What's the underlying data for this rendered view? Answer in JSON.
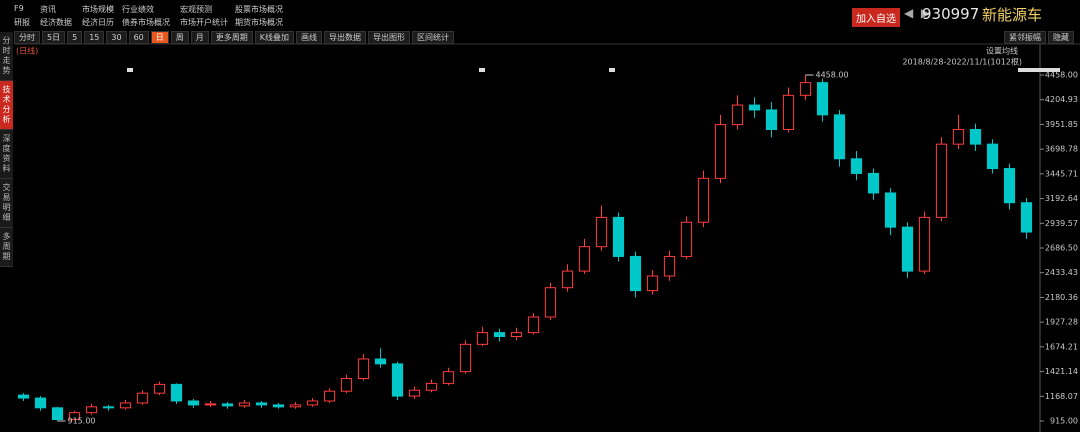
{
  "menu": {
    "rows": [
      [
        "F9",
        "资讯",
        "市场规模",
        "行业绩效",
        "宏观预测",
        "股票市场概况"
      ],
      [
        "研报",
        "经济数据",
        "经济日历",
        "债券市场概况",
        "市场开户统计",
        "期货市场概况"
      ]
    ]
  },
  "header": {
    "add_button": "加入自选",
    "code": "930997",
    "name": "新能源车"
  },
  "toolbar": [
    "分时",
    "5日",
    "5",
    "15",
    "30",
    "60",
    "日",
    "周",
    "月",
    "更多周期",
    "K线叠加",
    "画线",
    "导出数据",
    "导出图形",
    "区间统计"
  ],
  "toolbar_right": [
    "紧邻振幅",
    "隐藏"
  ],
  "side_tabs": [
    "分时走势",
    "技术分析",
    "深度资料",
    "交易明细",
    "多周期"
  ],
  "chart_data": {
    "type": "candlestick",
    "period_label": "(日线)",
    "ma_setting": "设置均线",
    "range_label": "2018/8/28-2022/11/1(1012根)",
    "up_color": "#ff3b3b",
    "down_color": "#00c8c8",
    "open": [
      1180,
      1150,
      1050,
      930,
      1000,
      1060,
      1050,
      1100,
      1200,
      1290,
      1120,
      1080,
      1090,
      1070,
      1100,
      1080,
      1060,
      1080,
      1120,
      1220,
      1350,
      1550,
      1500,
      1170,
      1230,
      1300,
      1420,
      1700,
      1820,
      1780,
      1820,
      1980,
      2280,
      2450,
      2700,
      3000,
      2600,
      2250,
      2400,
      2600,
      2950,
      3400,
      3950,
      4150,
      4100,
      3900,
      4250,
      4380,
      4050,
      3600,
      3450,
      3250,
      2900,
      2450,
      3000,
      3750,
      3900,
      3750,
      3500,
      3150
    ],
    "high": [
      1200,
      1170,
      1060,
      1020,
      1090,
      1080,
      1130,
      1230,
      1320,
      1300,
      1140,
      1120,
      1110,
      1130,
      1120,
      1100,
      1110,
      1150,
      1250,
      1390,
      1600,
      1660,
      1520,
      1270,
      1340,
      1460,
      1740,
      1880,
      1860,
      1870,
      2020,
      2330,
      2520,
      2780,
      3120,
      3050,
      2650,
      2460,
      2660,
      3010,
      3480,
      4050,
      4250,
      4230,
      4180,
      4330,
      4458,
      4420,
      4100,
      3680,
      3500,
      3300,
      2950,
      3060,
      3820,
      4050,
      3960,
      3800,
      3550,
      3200
    ],
    "low": [
      1120,
      1020,
      915,
      920,
      980,
      1020,
      1030,
      1080,
      1180,
      1090,
      1050,
      1060,
      1040,
      1050,
      1050,
      1040,
      1040,
      1060,
      1100,
      1200,
      1330,
      1460,
      1130,
      1140,
      1210,
      1280,
      1400,
      1680,
      1730,
      1740,
      1800,
      1950,
      2240,
      2420,
      2660,
      2550,
      2180,
      2210,
      2350,
      2570,
      2900,
      3350,
      3900,
      4020,
      3820,
      3870,
      4200,
      3980,
      3520,
      3380,
      3180,
      2820,
      2380,
      2420,
      2960,
      3700,
      3680,
      3450,
      3080,
      2780
    ],
    "close": [
      1150,
      1050,
      930,
      1000,
      1060,
      1050,
      1100,
      1200,
      1290,
      1120,
      1080,
      1090,
      1070,
      1100,
      1080,
      1060,
      1080,
      1120,
      1220,
      1350,
      1550,
      1500,
      1170,
      1230,
      1300,
      1420,
      1700,
      1820,
      1780,
      1820,
      1980,
      2280,
      2450,
      2700,
      3000,
      2600,
      2250,
      2400,
      2600,
      2950,
      3400,
      3950,
      4150,
      4100,
      3900,
      4250,
      4380,
      4050,
      3600,
      3450,
      3250,
      2900,
      2450,
      3000,
      3750,
      3900,
      3750,
      3500,
      3150,
      2850
    ],
    "ylim": [
      915,
      4458
    ],
    "yticks": [
      {
        "value": 4458,
        "label": "4458.00"
      },
      {
        "value": 4204.93,
        "label": "4204.93"
      },
      {
        "value": 3951.85,
        "label": "3951.85"
      },
      {
        "value": 3698.78,
        "label": "3698.78"
      },
      {
        "value": 3445.71,
        "label": "3445.71"
      },
      {
        "value": 3192.64,
        "label": "3192.64"
      },
      {
        "value": 2939.57,
        "label": "2939.57"
      },
      {
        "value": 2686.5,
        "label": "2686.50"
      },
      {
        "value": 2433.43,
        "label": "2433.43"
      },
      {
        "value": 2180.36,
        "label": "2180.36"
      },
      {
        "value": 1927.28,
        "label": "1927.28"
      },
      {
        "value": 1674.21,
        "label": "1674.21"
      },
      {
        "value": 1421.14,
        "label": "1421.14"
      },
      {
        "value": 1168.07,
        "label": "1168.07"
      },
      {
        "value": 915,
        "label": "915.00"
      }
    ],
    "annotations": [
      {
        "value": 4458,
        "label": "4458.00"
      },
      {
        "value": 915,
        "label": "915.00"
      }
    ]
  }
}
